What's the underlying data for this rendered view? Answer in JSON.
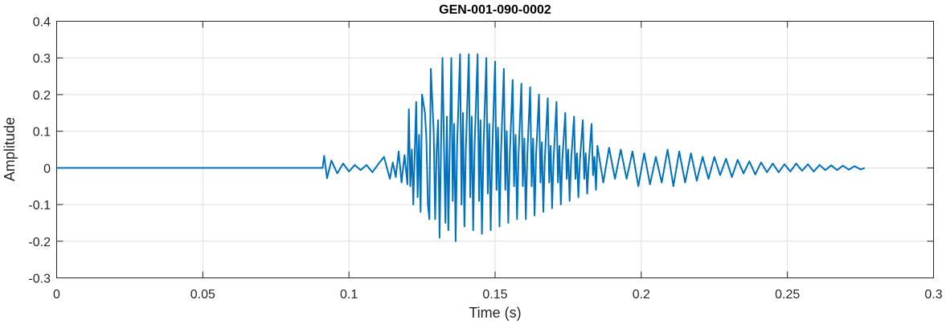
{
  "chart_data": {
    "type": "line",
    "title": "GEN-001-090-0002",
    "xlabel": "Time (s)",
    "ylabel": "Amplitude",
    "xlim": [
      0,
      0.3
    ],
    "ylim": [
      -0.3,
      0.4
    ],
    "x_ticks": [
      0,
      0.05,
      0.1,
      0.15,
      0.2,
      0.25,
      0.3
    ],
    "x_tick_labels": [
      "0",
      "0.05",
      "0.1",
      "0.15",
      "0.2",
      "0.25",
      "0.3"
    ],
    "y_ticks": [
      -0.3,
      -0.2,
      -0.1,
      0,
      0.1,
      0.2,
      0.3,
      0.4
    ],
    "y_tick_labels": [
      "-0.3",
      "-0.2",
      "-0.1",
      "0",
      "0.1",
      "0.2",
      "0.3",
      "0.4"
    ],
    "grid": true,
    "color": "#0072BD",
    "series": [
      {
        "x": [
          0,
          0.091,
          0.0915,
          0.0925,
          0.094,
          0.096,
          0.098,
          0.1,
          0.102,
          0.104,
          0.106,
          0.108,
          0.11,
          0.112,
          0.114,
          0.115,
          0.116,
          0.117,
          0.118,
          0.119,
          0.12,
          0.1205,
          0.121,
          0.1215,
          0.122,
          0.123,
          0.1235,
          0.124,
          0.1245,
          0.125,
          0.126,
          0.1265,
          0.127,
          0.1275,
          0.128,
          0.129,
          0.1295,
          0.13,
          0.1305,
          0.131,
          0.132,
          0.1325,
          0.133,
          0.1335,
          0.134,
          0.135,
          0.1355,
          0.136,
          0.1365,
          0.137,
          0.138,
          0.1385,
          0.139,
          0.1395,
          0.14,
          0.141,
          0.1415,
          0.142,
          0.1425,
          0.143,
          0.144,
          0.1445,
          0.145,
          0.1455,
          0.146,
          0.147,
          0.1475,
          0.148,
          0.1485,
          0.149,
          0.15,
          0.1505,
          0.151,
          0.1515,
          0.152,
          0.153,
          0.1535,
          0.154,
          0.1545,
          0.155,
          0.156,
          0.1565,
          0.157,
          0.1575,
          0.158,
          0.159,
          0.1595,
          0.16,
          0.1605,
          0.161,
          0.162,
          0.1625,
          0.163,
          0.1635,
          0.164,
          0.165,
          0.1655,
          0.166,
          0.1665,
          0.167,
          0.168,
          0.1685,
          0.169,
          0.1695,
          0.17,
          0.171,
          0.1715,
          0.172,
          0.1725,
          0.173,
          0.174,
          0.1745,
          0.175,
          0.1755,
          0.176,
          0.177,
          0.1775,
          0.178,
          0.1785,
          0.179,
          0.18,
          0.1805,
          0.181,
          0.1815,
          0.182,
          0.183,
          0.1835,
          0.184,
          0.1845,
          0.185,
          0.187,
          0.189,
          0.191,
          0.193,
          0.195,
          0.197,
          0.199,
          0.201,
          0.203,
          0.205,
          0.207,
          0.209,
          0.211,
          0.213,
          0.215,
          0.217,
          0.219,
          0.221,
          0.223,
          0.225,
          0.227,
          0.229,
          0.231,
          0.233,
          0.235,
          0.237,
          0.239,
          0.241,
          0.243,
          0.245,
          0.247,
          0.249,
          0.251,
          0.253,
          0.255,
          0.257,
          0.259,
          0.261,
          0.263,
          0.265,
          0.267,
          0.269,
          0.271,
          0.273,
          0.275,
          0.2765
        ],
        "y": [
          0,
          0,
          0.033,
          -0.028,
          0.02,
          -0.015,
          0.012,
          -0.01,
          0.008,
          -0.006,
          0.008,
          -0.012,
          0.01,
          0.03,
          -0.03,
          0.015,
          -0.025,
          0.045,
          -0.04,
          0.035,
          -0.045,
          0.16,
          -0.05,
          0.05,
          -0.1,
          0.18,
          -0.08,
          0.09,
          -0.12,
          0.2,
          0.15,
          0.08,
          -0.1,
          -0.14,
          0.27,
          0.1,
          -0.14,
          0.05,
          0.13,
          -0.19,
          0.3,
          0.06,
          -0.15,
          0.14,
          -0.17,
          0.3,
          -0.09,
          0.12,
          -0.2,
          0.06,
          0.31,
          -0.1,
          0.15,
          -0.16,
          0.05,
          0.31,
          -0.08,
          0.14,
          -0.17,
          0.06,
          0.31,
          -0.09,
          0.13,
          -0.18,
          0.05,
          0.3,
          -0.07,
          0.12,
          -0.17,
          0.04,
          0.29,
          -0.06,
          0.11,
          -0.16,
          0.04,
          0.27,
          -0.06,
          0.1,
          -0.15,
          0.03,
          0.24,
          -0.05,
          0.09,
          -0.14,
          0.03,
          0.23,
          -0.05,
          0.08,
          -0.14,
          0.03,
          0.22,
          -0.05,
          0.08,
          -0.13,
          0.03,
          0.2,
          -0.04,
          0.07,
          -0.12,
          0.02,
          0.19,
          -0.04,
          0.06,
          -0.11,
          0.02,
          0.18,
          -0.04,
          0.06,
          -0.1,
          0.02,
          0.15,
          -0.03,
          0.05,
          -0.09,
          0.02,
          0.14,
          -0.03,
          0.04,
          -0.08,
          0.02,
          0.13,
          -0.03,
          0.04,
          -0.07,
          0.01,
          0.12,
          -0.02,
          0.03,
          -0.06,
          0.06,
          -0.04,
          0.055,
          -0.03,
          0.05,
          -0.03,
          0.045,
          -0.05,
          0.04,
          -0.045,
          0.03,
          -0.04,
          0.05,
          -0.05,
          0.045,
          -0.04,
          0.04,
          -0.035,
          0.03,
          -0.03,
          0.03,
          -0.02,
          0.025,
          -0.025,
          0.022,
          -0.015,
          0.018,
          -0.018,
          0.015,
          -0.012,
          0.012,
          -0.012,
          0.01,
          -0.01,
          0.012,
          -0.008,
          0.01,
          -0.01,
          0.008,
          -0.006,
          0.007,
          -0.006,
          0.006,
          -0.005,
          0.005,
          -0.004,
          0.0
        ]
      }
    ]
  }
}
